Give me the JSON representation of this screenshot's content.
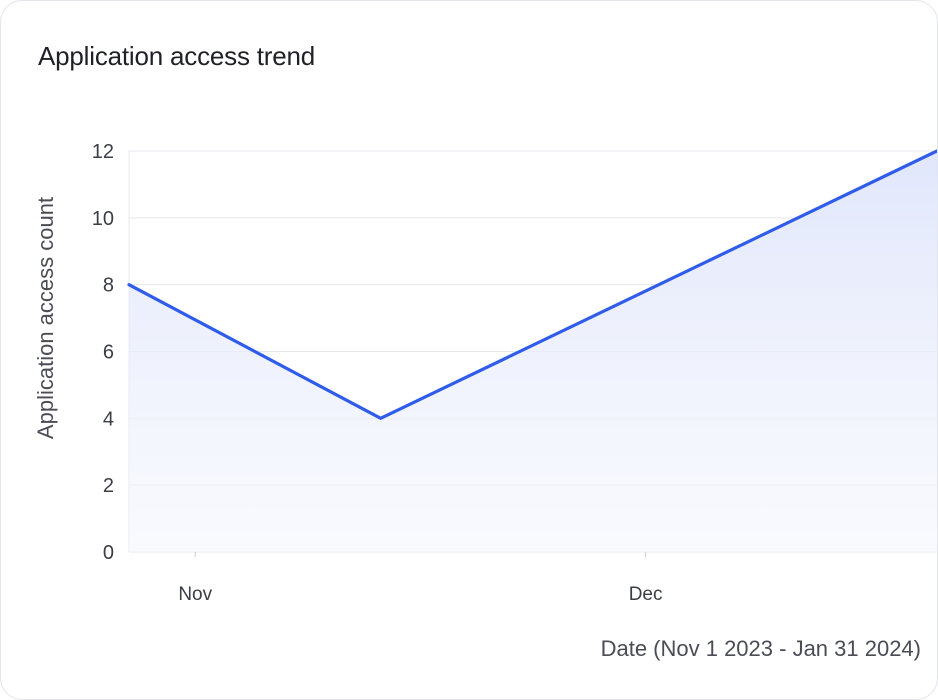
{
  "card": {
    "title": "Application access trend"
  },
  "chart_data": {
    "type": "area",
    "x": [
      "2023-11-01",
      "2023-11-20",
      "2024-01-01"
    ],
    "series": [
      {
        "values": [
          8,
          4,
          12
        ]
      }
    ],
    "ylabel": "Application access count",
    "xlabel": "Date (Nov 1 2023 - Jan 31 2024)",
    "ylim": [
      0,
      12
    ],
    "yticks": [
      0,
      2,
      4,
      6,
      8,
      10,
      12
    ],
    "xticks": [
      {
        "label": "Nov",
        "date": "2023-11-06"
      },
      {
        "label": "Dec",
        "date": "2023-12-10"
      }
    ],
    "grid": true,
    "legend": "none",
    "colors": {
      "line": "#2f5ce8",
      "fill": "#dfe5fb",
      "grid": "#e6e8ee"
    }
  }
}
